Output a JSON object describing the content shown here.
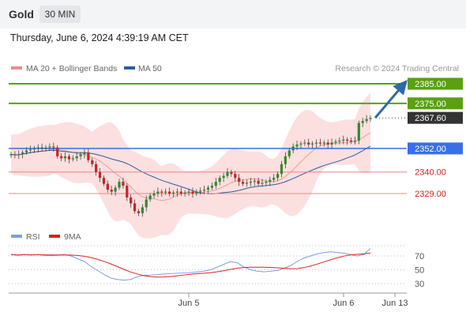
{
  "header": {
    "symbol": "Gold",
    "timeframe": "30 MIN",
    "timestamp": "Thursday, June 6, 2024 4:39:19 AM CET"
  },
  "legend": [
    {
      "label": "MA 20 + Bollinger Bands",
      "color": "#f08a8a"
    },
    {
      "label": "MA 50",
      "color": "#2d5d9f"
    }
  ],
  "copyright": "Research © 2024 Trading Central",
  "colors": {
    "resistance": "#5aa012",
    "support": "#e8888a",
    "pivot": "#3b6ee8",
    "price_tag": "#333333",
    "arrow": "#2d6aa8",
    "candle_up": "#2e8b2e",
    "candle_down": "#cc2222"
  },
  "chart_data": [
    {
      "type": "candlestick",
      "title": "Gold 30 MIN",
      "ylim": [
        2307,
        2393
      ],
      "x_ticks": [
        "Jun 5",
        "Jun 6",
        "Jun 13"
      ],
      "grid": false,
      "legend_position": "top-left",
      "levels": [
        {
          "value": 2385.0,
          "label": "2385.00",
          "kind": "resistance"
        },
        {
          "value": 2375.0,
          "label": "2375.00",
          "kind": "resistance"
        },
        {
          "value": 2367.6,
          "label": "2367.60",
          "kind": "last"
        },
        {
          "value": 2352.0,
          "label": "2352.00",
          "kind": "pivot"
        },
        {
          "value": 2340.0,
          "label": "2340.00",
          "kind": "support"
        },
        {
          "value": 2329.0,
          "label": "2329.00",
          "kind": "support"
        }
      ],
      "last_price": 2367.6,
      "forecast_target": 2385.0,
      "price_series": [
        2349,
        2348.5,
        2349,
        2350,
        2351,
        2351.5,
        2352,
        2352.5,
        2352,
        2352.5,
        2353,
        2352.5,
        2348,
        2347,
        2348,
        2346.5,
        2347,
        2348,
        2349,
        2350,
        2346,
        2344,
        2340,
        2337,
        2334,
        2331,
        2330,
        2332,
        2335,
        2333,
        2327,
        2324,
        2320,
        2319,
        2322,
        2326,
        2328,
        2329,
        2330,
        2329.5,
        2330,
        2329,
        2329.5,
        2330,
        2329,
        2329.5,
        2330,
        2329,
        2330,
        2330.5,
        2331,
        2332,
        2333,
        2335,
        2337,
        2338,
        2340,
        2339,
        2337,
        2335,
        2334,
        2334.5,
        2335,
        2335.5,
        2334,
        2334.5,
        2335,
        2336,
        2337,
        2339,
        2344,
        2348,
        2351,
        2353,
        2354,
        2354.5,
        2355,
        2354,
        2354.5,
        2355,
        2354.5,
        2355,
        2354,
        2355,
        2355.5,
        2356,
        2356.5,
        2356,
        2355.5,
        2356,
        2365,
        2366,
        2367,
        2367.6
      ],
      "ma50_range": [
        2333,
        2357
      ],
      "ma20_range": [
        2333,
        2362
      ]
    },
    {
      "type": "line",
      "title": "RSI",
      "legend": [
        {
          "label": "RSI",
          "color": "#7aa0e0"
        },
        {
          "label": "9MA",
          "color": "#dd2222"
        }
      ],
      "ylim": [
        20,
        90
      ],
      "y_ticks": [
        70,
        50,
        30
      ],
      "rsi_series": [
        72,
        71,
        72,
        71.5,
        72,
        71,
        70.5,
        71,
        72,
        70,
        66,
        62,
        55,
        49,
        43,
        38,
        36,
        35,
        36,
        40,
        42,
        42.5,
        43,
        44,
        44.5,
        45,
        45.5,
        46,
        47,
        48,
        50,
        54,
        58,
        62,
        60,
        54,
        50,
        48,
        47,
        48,
        49,
        52,
        56,
        62,
        67,
        70,
        73,
        75,
        76,
        75,
        74,
        72,
        70,
        72,
        81
      ]
    }
  ]
}
